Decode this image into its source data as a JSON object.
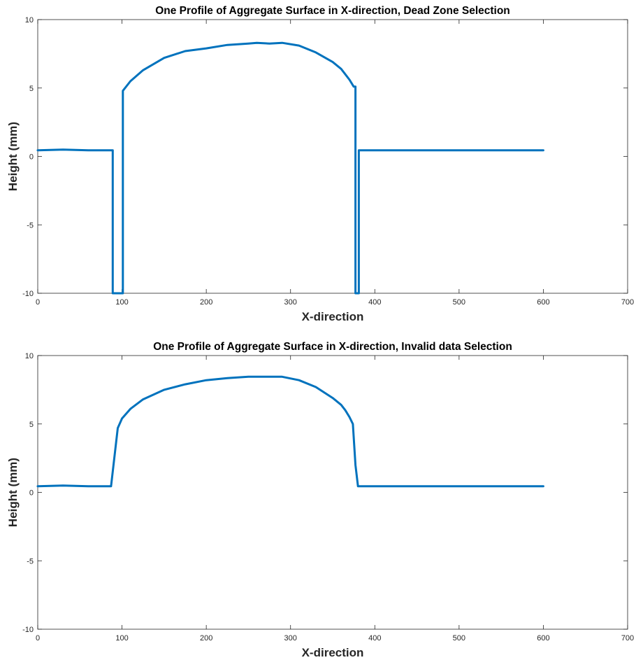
{
  "chart_data": [
    {
      "type": "line",
      "title": "One Profile of Aggregate Surface in X-direction, Dead Zone Selection",
      "xlabel": "X-direction",
      "ylabel": "Height (mm)",
      "xlim": [
        0,
        700
      ],
      "ylim": [
        -10,
        10
      ],
      "xticks": [
        "0",
        "100",
        "200",
        "300",
        "400",
        "500",
        "600",
        "700"
      ],
      "yticks": [
        "-10",
        "-5",
        "0",
        "5",
        "10"
      ],
      "grid": false,
      "color": "#0072BD",
      "series": [
        {
          "x": [
            0,
            30,
            60,
            89,
            89,
            101,
            101,
            110,
            125,
            150,
            175,
            200,
            225,
            250,
            260,
            275,
            290,
            310,
            330,
            350,
            360,
            365,
            370,
            375,
            377,
            377,
            381,
            381,
            400,
            450,
            500,
            550,
            600
          ],
          "y": [
            0.45,
            0.5,
            0.45,
            0.45,
            -10,
            -10,
            4.8,
            5.5,
            6.3,
            7.2,
            7.7,
            7.9,
            8.15,
            8.25,
            8.3,
            8.25,
            8.3,
            8.1,
            7.6,
            6.9,
            6.4,
            6.0,
            5.6,
            5.1,
            5.1,
            -10,
            -10,
            0.45,
            0.45,
            0.45,
            0.45,
            0.45,
            0.45
          ]
        }
      ]
    },
    {
      "type": "line",
      "title": "One Profile of Aggregate Surface in X-direction, Invalid data Selection",
      "xlabel": "X-direction",
      "ylabel": "Height (mm)",
      "xlim": [
        0,
        700
      ],
      "ylim": [
        -10,
        10
      ],
      "xticks": [
        "0",
        "100",
        "200",
        "300",
        "400",
        "500",
        "600",
        "700"
      ],
      "yticks": [
        "-10",
        "-5",
        "0",
        "5",
        "10"
      ],
      "grid": false,
      "color": "#0072BD",
      "series": [
        {
          "x": [
            0,
            30,
            60,
            87,
            95,
            100,
            110,
            125,
            150,
            175,
            200,
            225,
            250,
            260,
            275,
            290,
            310,
            330,
            350,
            360,
            365,
            370,
            374,
            377,
            380,
            382,
            400,
            450,
            500,
            550,
            600
          ],
          "y": [
            0.45,
            0.5,
            0.45,
            0.45,
            4.7,
            5.4,
            6.1,
            6.8,
            7.5,
            7.9,
            8.2,
            8.35,
            8.45,
            8.45,
            8.45,
            8.45,
            8.2,
            7.7,
            6.9,
            6.4,
            6.0,
            5.5,
            5.0,
            2.0,
            0.45,
            0.45,
            0.45,
            0.45,
            0.45,
            0.45,
            0.45
          ]
        }
      ]
    }
  ]
}
